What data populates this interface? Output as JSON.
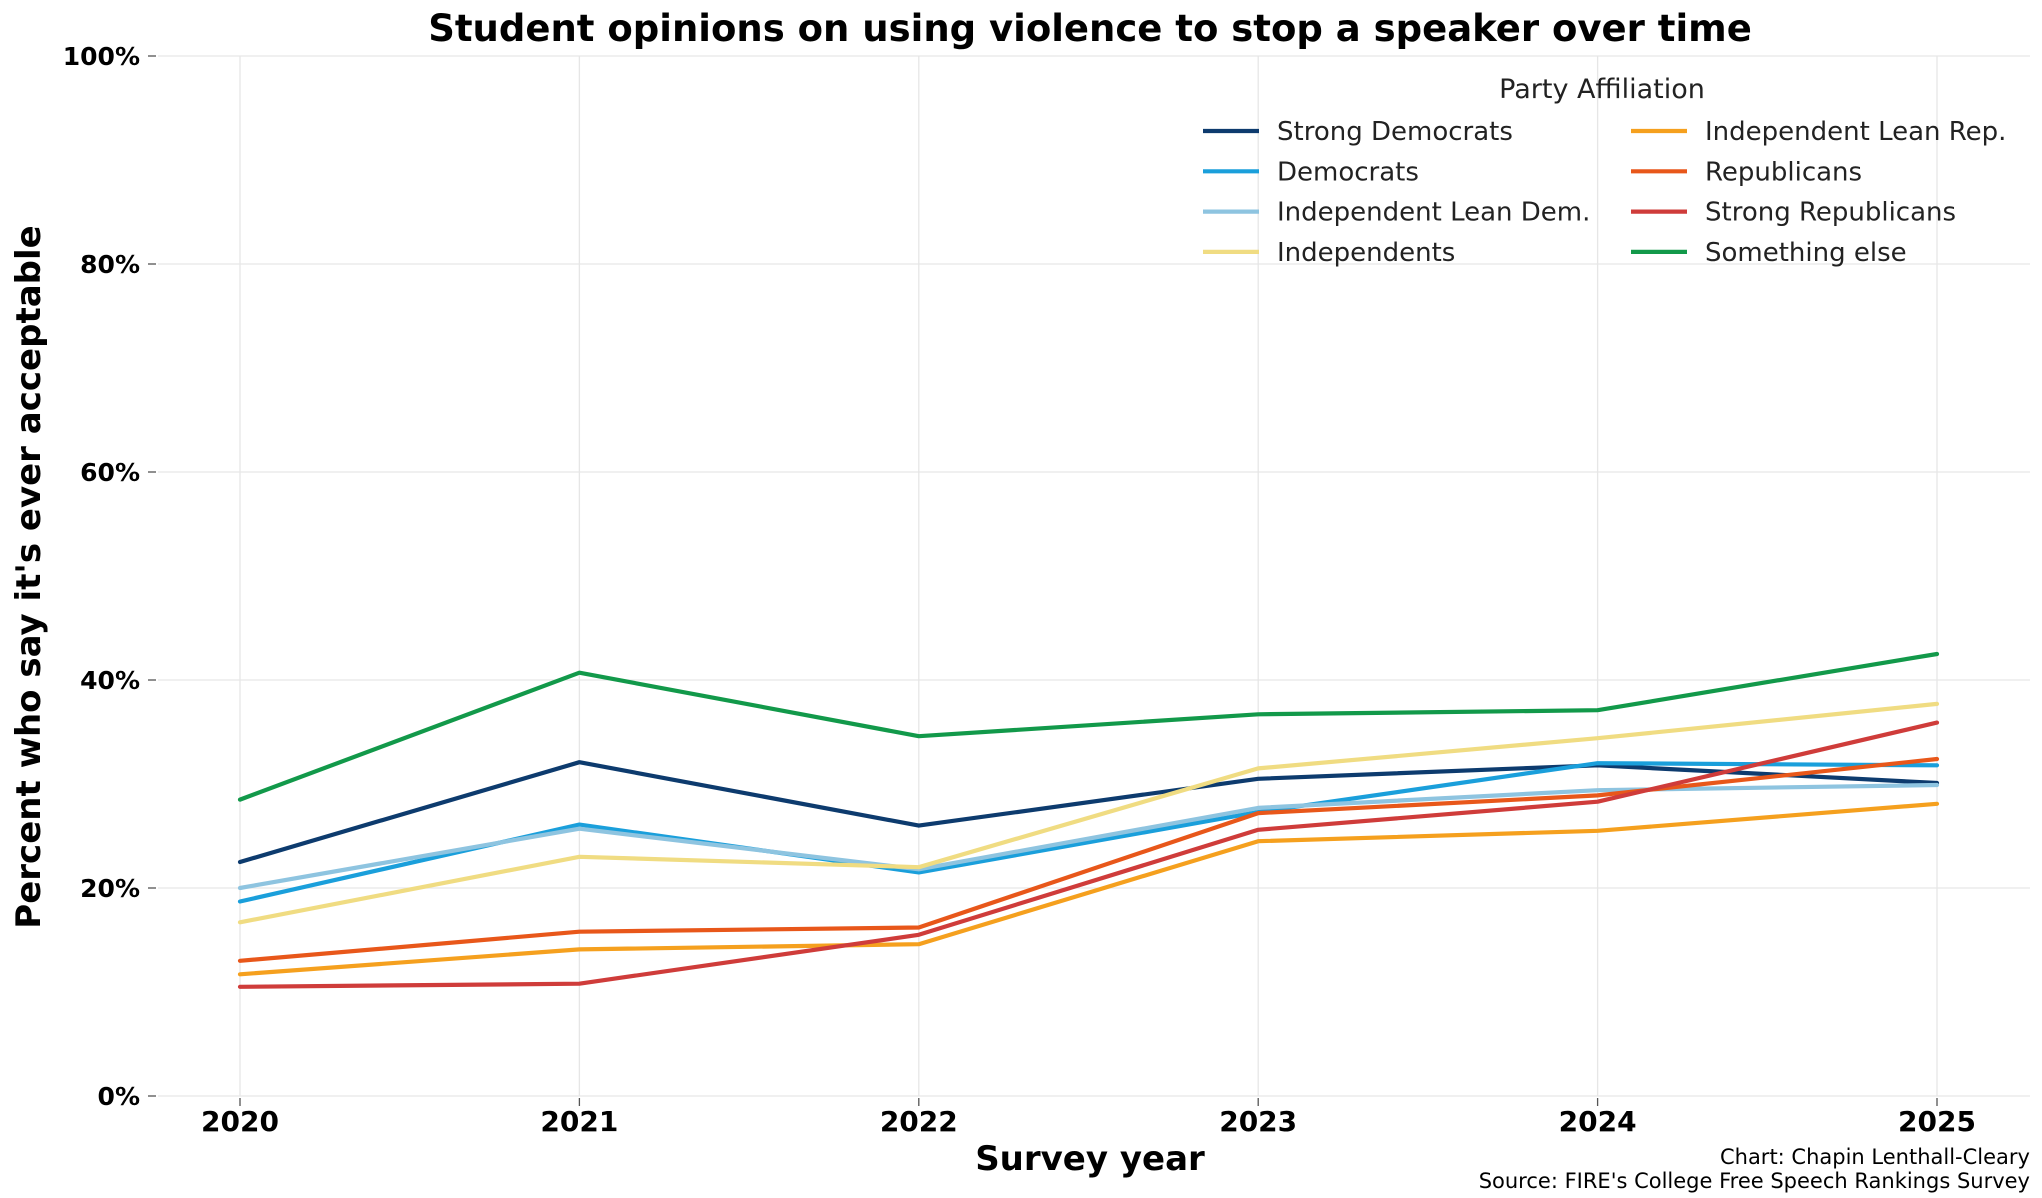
{
  "chart_data": {
    "type": "line",
    "title": "Student opinions on using violence to stop a speaker over time",
    "xlabel": "Survey year",
    "ylabel": "Percent who say it's ever acceptable",
    "x": [
      2020,
      2021,
      2022,
      2023,
      2024,
      2025
    ],
    "x_tick_labels": [
      "2020",
      "2021",
      "2022",
      "2023",
      "2024",
      "2025"
    ],
    "ylim": [
      0,
      100
    ],
    "y_ticks": [
      0,
      20,
      40,
      60,
      80,
      100
    ],
    "y_tick_labels": [
      "0%",
      "20%",
      "40%",
      "60%",
      "80%",
      "100%"
    ],
    "grid": true,
    "legend": {
      "title": "Party Affiliation",
      "placement": "top-right",
      "columns": 2
    },
    "series": [
      {
        "name": "Strong Democrats",
        "color": "#0d3b6e",
        "values": [
          22.5,
          32.1,
          26.0,
          30.5,
          31.8,
          30.1
        ]
      },
      {
        "name": "Democrats",
        "color": "#1a9fdb",
        "values": [
          18.7,
          26.1,
          21.5,
          27.3,
          32.0,
          31.8
        ]
      },
      {
        "name": "Independent Lean Dem.",
        "color": "#8ec4e0",
        "values": [
          20.0,
          25.7,
          21.8,
          27.7,
          29.4,
          29.9
        ]
      },
      {
        "name": "Independents",
        "color": "#f0dc82",
        "values": [
          16.7,
          23.0,
          22.0,
          31.5,
          34.4,
          37.7
        ]
      },
      {
        "name": "Independent Lean Rep.",
        "color": "#f5a01e",
        "values": [
          11.7,
          14.1,
          14.6,
          24.5,
          25.5,
          28.1
        ]
      },
      {
        "name": "Republicans",
        "color": "#e8571a",
        "values": [
          13.0,
          15.8,
          16.2,
          27.2,
          28.9,
          32.4
        ]
      },
      {
        "name": "Strong Republicans",
        "color": "#cf3c3a",
        "values": [
          10.5,
          10.8,
          15.5,
          25.6,
          28.3,
          35.9
        ]
      },
      {
        "name": "Something else",
        "color": "#12994a",
        "values": [
          28.5,
          40.7,
          34.6,
          36.7,
          37.1,
          42.5
        ]
      }
    ],
    "credits": [
      "Chart: Chapin Lenthall-Cleary",
      "Source: FIRE's College Free Speech Rankings Survey"
    ]
  }
}
